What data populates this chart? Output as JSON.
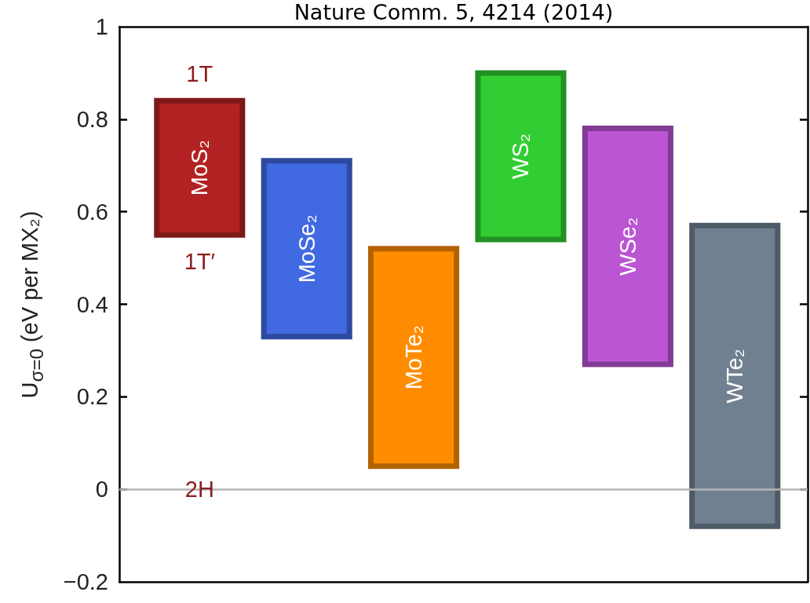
{
  "chart_data": {
    "type": "bar",
    "title": "Nature Comm. 5, 4214 (2014)",
    "ylabel": "U$_{σ=0}$ (eV per MX₂)",
    "categories": [
      "MoS₂",
      "MoSe₂",
      "MoTe₂",
      "WS₂",
      "WSe₂",
      "WTe₂"
    ],
    "base": [
      0.55,
      0.33,
      0.05,
      0.54,
      0.27,
      -0.08
    ],
    "values": [
      0.29,
      0.38,
      0.47,
      0.36,
      0.51,
      0.65
    ],
    "colors": [
      "#b22222",
      "#4169e1",
      "#ff8c00",
      "#32cd32",
      "#ba55d3",
      "#708090"
    ],
    "ylim": [
      -0.2,
      1
    ],
    "yticks": [
      {
        "value": -0.2,
        "label": "−0.2"
      },
      0,
      0.2,
      0.4,
      0.6,
      0.8,
      1
    ],
    "ref_lines": [
      {
        "axis": "y",
        "value": 0,
        "color": "#b4b4b4"
      }
    ],
    "annotations": [
      {
        "text": "1T",
        "x": "MoS₂",
        "y": 0.84
      },
      {
        "text": "1T′",
        "x": "MoS₂",
        "y": 0.55
      },
      {
        "text": "2H",
        "x": "MoS₂",
        "y": 0
      }
    ]
  }
}
